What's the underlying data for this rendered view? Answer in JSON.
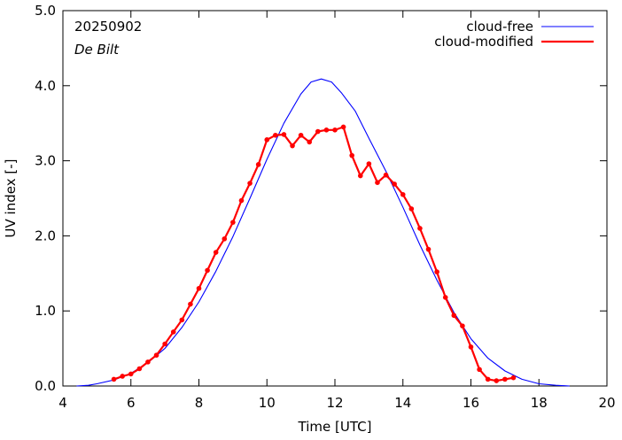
{
  "chart_data": {
    "type": "line",
    "title": "",
    "annotations": [
      "20250902",
      "De Bilt"
    ],
    "xlabel": "Time  [UTC]",
    "ylabel": "UV index  [-]",
    "xlim": [
      4,
      20
    ],
    "ylim": [
      0,
      5
    ],
    "x_ticks": [
      4,
      6,
      8,
      10,
      12,
      14,
      16,
      18,
      20
    ],
    "x_tick_labels": [
      "4",
      "6",
      "8",
      "10",
      "12",
      "14",
      "16",
      "18",
      "20"
    ],
    "y_ticks": [
      0,
      1,
      2,
      3,
      4,
      5
    ],
    "y_tick_labels": [
      "0.0",
      "1.0",
      "2.0",
      "3.0",
      "4.0",
      "5.0"
    ],
    "legend_position": "top-right",
    "grid": false,
    "series": [
      {
        "name": "cloud-free",
        "color": "#0000ff",
        "markers": false,
        "x": [
          4.4,
          4.75,
          5.0,
          5.5,
          6.0,
          6.5,
          7.0,
          7.5,
          8.0,
          8.5,
          9.0,
          9.5,
          10.0,
          10.5,
          11.0,
          11.3,
          11.6,
          11.9,
          12.2,
          12.6,
          13.0,
          13.5,
          14.0,
          14.5,
          15.0,
          15.5,
          16.0,
          16.5,
          17.0,
          17.5,
          18.0,
          18.5,
          18.9
        ],
        "y": [
          0.0,
          0.01,
          0.03,
          0.08,
          0.17,
          0.31,
          0.5,
          0.78,
          1.12,
          1.53,
          1.99,
          2.5,
          3.02,
          3.5,
          3.89,
          4.05,
          4.09,
          4.05,
          3.9,
          3.66,
          3.3,
          2.86,
          2.38,
          1.88,
          1.41,
          0.98,
          0.63,
          0.37,
          0.2,
          0.09,
          0.03,
          0.01,
          0.0
        ]
      },
      {
        "name": "cloud-modified",
        "color": "#ff0000",
        "markers": true,
        "x": [
          5.5,
          5.75,
          6.0,
          6.25,
          6.5,
          6.75,
          7.0,
          7.25,
          7.5,
          7.75,
          8.0,
          8.25,
          8.5,
          8.75,
          9.0,
          9.25,
          9.5,
          9.75,
          10.0,
          10.25,
          10.5,
          10.75,
          11.0,
          11.25,
          11.5,
          11.75,
          12.0,
          12.25,
          12.5,
          12.75,
          13.0,
          13.25,
          13.5,
          13.75,
          14.0,
          14.25,
          14.5,
          14.75,
          15.0,
          15.25,
          15.5,
          15.75,
          16.0,
          16.25,
          16.5,
          16.75,
          17.0,
          17.25
        ],
        "y": [
          0.09,
          0.13,
          0.16,
          0.23,
          0.32,
          0.41,
          0.56,
          0.72,
          0.88,
          1.09,
          1.3,
          1.54,
          1.78,
          1.96,
          2.18,
          2.47,
          2.7,
          2.95,
          3.28,
          3.34,
          3.35,
          3.2,
          3.34,
          3.25,
          3.39,
          3.41,
          3.41,
          3.45,
          3.07,
          2.8,
          2.96,
          2.71,
          2.81,
          2.69,
          2.55,
          2.36,
          2.1,
          1.82,
          1.52,
          1.18,
          0.94,
          0.8,
          0.52,
          0.22,
          0.09,
          0.07,
          0.09,
          0.11
        ]
      }
    ]
  }
}
